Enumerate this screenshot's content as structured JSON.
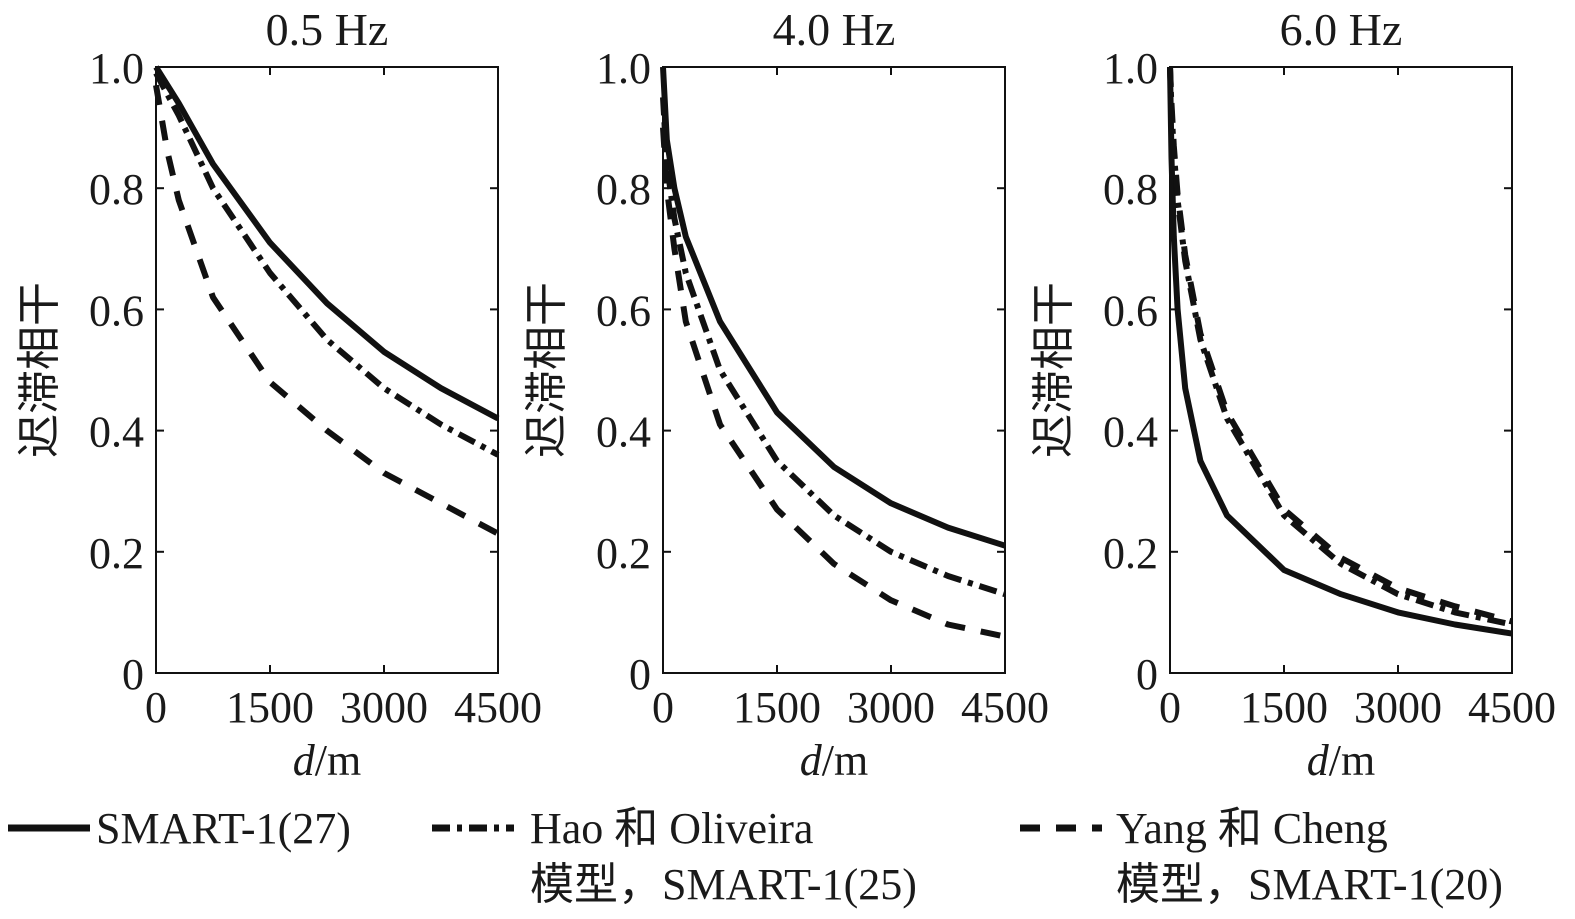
{
  "figure": {
    "legend": {
      "items": [
        {
          "series": "s27",
          "style": "solid",
          "line1": "SMART-1(27)",
          "line2": ""
        },
        {
          "series": "hao",
          "style": "dashdot",
          "line1": "Hao 和 Oliveira",
          "line2": "模型，SMART-1(25)"
        },
        {
          "series": "yang",
          "style": "dashed",
          "line1": "Yang 和 Cheng",
          "line2": "模型，SMART-1(20)"
        }
      ]
    }
  },
  "chart_data": [
    {
      "type": "line",
      "title": "0.5 Hz",
      "ylabel": "迟滞相干",
      "xlabel_italic": "d",
      "xlabel_rest": "/m",
      "xlim": [
        0,
        4500
      ],
      "ylim": [
        0,
        1
      ],
      "xticks": [
        0,
        1500,
        3000,
        4500
      ],
      "xtick_labels": [
        "0",
        "1500",
        "3000",
        "4500"
      ],
      "yticks": [
        0,
        0.2,
        0.4,
        0.6,
        0.8,
        1.0
      ],
      "ytick_labels": [
        "0",
        "0.2",
        "0.4",
        "0.6",
        "0.8",
        "1.0"
      ],
      "legend_position": "bottom",
      "series": [
        {
          "id": "s27",
          "style": "solid",
          "x": [
            0,
            300,
            750,
            1500,
            2250,
            3000,
            3750,
            4500
          ],
          "y": [
            1.0,
            0.94,
            0.84,
            0.71,
            0.61,
            0.53,
            0.47,
            0.42
          ]
        },
        {
          "id": "hao",
          "style": "dashdot",
          "x": [
            0,
            300,
            750,
            1500,
            2250,
            3000,
            3750,
            4500
          ],
          "y": [
            0.99,
            0.92,
            0.8,
            0.66,
            0.55,
            0.47,
            0.41,
            0.36
          ]
        },
        {
          "id": "yang",
          "style": "dashed",
          "x": [
            0,
            150,
            300,
            750,
            1500,
            2250,
            3000,
            3750,
            4500
          ],
          "y": [
            0.97,
            0.86,
            0.78,
            0.62,
            0.48,
            0.4,
            0.33,
            0.28,
            0.23
          ]
        }
      ]
    },
    {
      "type": "line",
      "title": "4.0 Hz",
      "ylabel": "迟滞相干",
      "xlabel_italic": "d",
      "xlabel_rest": "/m",
      "xlim": [
        0,
        4500
      ],
      "ylim": [
        0,
        1
      ],
      "xticks": [
        0,
        1500,
        3000,
        4500
      ],
      "xtick_labels": [
        "0",
        "1500",
        "3000",
        "4500"
      ],
      "yticks": [
        0,
        0.2,
        0.4,
        0.6,
        0.8,
        1.0
      ],
      "ytick_labels": [
        "0",
        "0.2",
        "0.4",
        "0.6",
        "0.8",
        "1.0"
      ],
      "legend_position": "bottom",
      "series": [
        {
          "id": "s27",
          "style": "solid",
          "x": [
            0,
            50,
            150,
            300,
            750,
            1500,
            2250,
            3000,
            3750,
            4500
          ],
          "y": [
            1.0,
            0.88,
            0.8,
            0.72,
            0.58,
            0.43,
            0.34,
            0.28,
            0.24,
            0.21
          ]
        },
        {
          "id": "hao",
          "style": "dashdot",
          "x": [
            0,
            50,
            150,
            300,
            750,
            1500,
            2250,
            3000,
            3750,
            4500
          ],
          "y": [
            0.95,
            0.84,
            0.75,
            0.66,
            0.5,
            0.35,
            0.26,
            0.2,
            0.16,
            0.13
          ]
        },
        {
          "id": "yang",
          "style": "dashed",
          "x": [
            0,
            50,
            150,
            300,
            750,
            1500,
            2250,
            3000,
            3750,
            4500
          ],
          "y": [
            0.9,
            0.8,
            0.7,
            0.58,
            0.41,
            0.27,
            0.18,
            0.12,
            0.08,
            0.06
          ]
        }
      ]
    },
    {
      "type": "line",
      "title": "6.0 Hz",
      "ylabel": "迟滞相干",
      "xlabel_italic": "d",
      "xlabel_rest": "/m",
      "xlim": [
        0,
        4500
      ],
      "ylim": [
        0,
        1
      ],
      "xticks": [
        0,
        1500,
        3000,
        4500
      ],
      "xtick_labels": [
        "0",
        "1500",
        "3000",
        "4500"
      ],
      "yticks": [
        0,
        0.2,
        0.4,
        0.6,
        0.8,
        1.0
      ],
      "ytick_labels": [
        "0",
        "0.2",
        "0.4",
        "0.6",
        "0.8",
        "1.0"
      ],
      "legend_position": "bottom",
      "series": [
        {
          "id": "s27",
          "style": "solid",
          "x": [
            0,
            20,
            50,
            100,
            200,
            400,
            750,
            1500,
            2250,
            3000,
            3750,
            4500
          ],
          "y": [
            1.0,
            0.85,
            0.72,
            0.6,
            0.47,
            0.35,
            0.26,
            0.17,
            0.13,
            0.1,
            0.08,
            0.065
          ]
        },
        {
          "id": "hao",
          "style": "dashdot",
          "x": [
            0,
            20,
            50,
            100,
            200,
            400,
            750,
            1500,
            2250,
            3000,
            3750,
            4500
          ],
          "y": [
            1.0,
            0.93,
            0.86,
            0.78,
            0.68,
            0.55,
            0.42,
            0.26,
            0.18,
            0.13,
            0.1,
            0.08
          ]
        },
        {
          "id": "yang",
          "style": "dashed",
          "x": [
            0,
            20,
            50,
            100,
            200,
            400,
            750,
            1500,
            2250,
            3000,
            3750,
            4500
          ],
          "y": [
            1.0,
            0.94,
            0.87,
            0.79,
            0.69,
            0.56,
            0.43,
            0.27,
            0.19,
            0.14,
            0.11,
            0.085
          ]
        }
      ]
    }
  ]
}
